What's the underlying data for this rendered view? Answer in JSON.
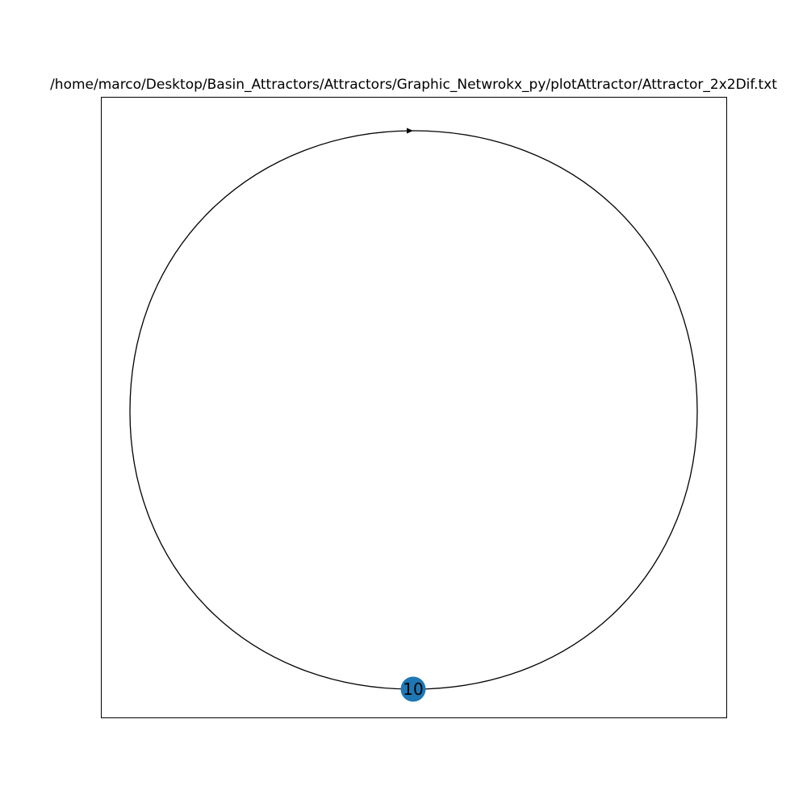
{
  "title": "/home/marco/Desktop/Basin_Attractors/Attractors/Graphic_Netwrokx_py/plotAttractor/Attractor_2x2Dif.txt",
  "graph": {
    "nodes": [
      {
        "id": "10",
        "label": "10"
      }
    ],
    "edges": [
      {
        "source": "10",
        "target": "10",
        "directed": true
      }
    ]
  },
  "colors": {
    "node_fill": "#1f77b4",
    "edge": "#000000",
    "label": "#000000",
    "frame": "#000000"
  }
}
